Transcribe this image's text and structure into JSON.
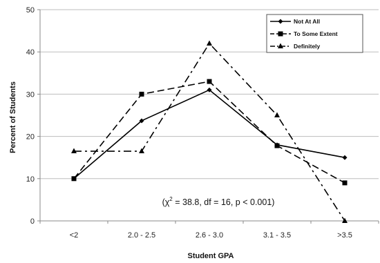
{
  "chart_data": {
    "type": "line",
    "categories": [
      "<2",
      "2.0 - 2.5",
      "2.6 - 3.0",
      "3.1 - 3.5",
      ">3.5"
    ],
    "series": [
      {
        "name": "Not At All",
        "values": [
          10,
          23.7,
          31,
          18,
          15
        ],
        "marker": "diamond",
        "dash": "solid"
      },
      {
        "name": "To Some Extent",
        "values": [
          10,
          30,
          33,
          17.8,
          9
        ],
        "marker": "square",
        "dash": "dashed"
      },
      {
        "name": "Definitely",
        "values": [
          16.5,
          16.5,
          42,
          25,
          0
        ],
        "marker": "triangle",
        "dash": "dashdot"
      }
    ],
    "xlabel": "Student GPA",
    "ylabel": "Percent of Students",
    "ylim": [
      0,
      50
    ],
    "yticks": [
      "0",
      "10",
      "20",
      "30",
      "40",
      "50"
    ],
    "grid": true,
    "legend_position": "top-right",
    "annotation": {
      "prefix": "(χ",
      "superscript": "2",
      "suffix": " = 38.8, df = 16, p < 0.001)"
    },
    "colors": {
      "line": "#000000",
      "grid": "#bdbdbd",
      "axis": "#888888"
    }
  }
}
